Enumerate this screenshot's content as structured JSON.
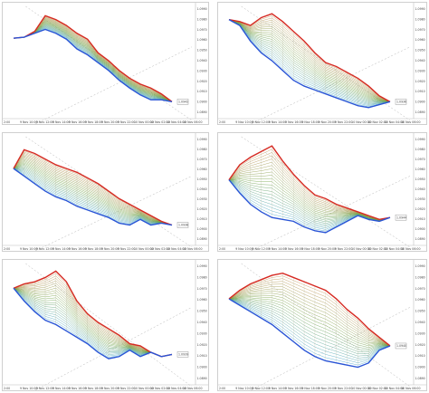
{
  "colors": {
    "top_edge": "#d62a22",
    "bottom_edge": "#2a55d6",
    "mesh_low": "#3aa3d6",
    "mesh_mid": "#6a9e3c",
    "mesh_high": "#c78a4a",
    "price_tag": "#9a9a9a",
    "trend_line": "#b5b5b5"
  },
  "panels": [
    {
      "y_ticks": [
        "1.0990",
        "1.0980",
        "1.0970",
        "1.0960",
        "1.0950",
        "1.0940",
        "1.0930",
        "1.0920",
        "1.0910",
        "1.0900",
        "1.0890"
      ],
      "x_ticks": [
        "2:00",
        "9 Nov 10:00",
        "9 Nov 12:00",
        "9 Nov 14:00",
        "9 Nov 16:00",
        "9 Nov 18:00",
        "9 Nov 20:00",
        "9 Nov 22:00",
        "10 Nov 00:00",
        "10 Nov 02:00",
        "10 Nov 04:00",
        "10 Nov 06:00"
      ],
      "price_tag": "1.0942"
    },
    {
      "y_ticks": [
        "1.0990",
        "1.0980",
        "1.0970",
        "1.0960",
        "1.0950",
        "1.0940",
        "1.0930",
        "1.0920",
        "1.0910",
        "1.0900",
        "1.0890"
      ],
      "x_ticks": [
        "2:00",
        "9 Nov 10:00",
        "9 Nov 12:00",
        "9 Nov 14:00",
        "9 Nov 16:00",
        "9 Nov 18:00",
        "9 Nov 20:00",
        "9 Nov 22:00",
        "10 Nov 00:00",
        "10 Nov 02:00",
        "10 Nov 04:00",
        "10 Nov 06:00"
      ],
      "price_tag": "1.0936"
    },
    {
      "y_ticks": [
        "1.0990",
        "1.0980",
        "1.0970",
        "1.0960",
        "1.0950",
        "1.0940",
        "1.0930",
        "1.0920",
        "1.0910",
        "1.0900",
        "1.0890"
      ],
      "x_ticks": [
        "2:00",
        "9 Nov 10:00",
        "9 Nov 12:00",
        "9 Nov 14:00",
        "9 Nov 16:00",
        "9 Nov 18:00",
        "9 Nov 20:00",
        "9 Nov 22:00",
        "10 Nov 00:00",
        "10 Nov 02:00",
        "10 Nov 04:00",
        "10 Nov 06:00"
      ],
      "price_tag": "1.0938"
    },
    {
      "y_ticks": [
        "1.0990",
        "1.0980",
        "1.0970",
        "1.0960",
        "1.0950",
        "1.0940",
        "1.0930",
        "1.0920",
        "1.0910",
        "1.0900",
        "1.0890"
      ],
      "x_ticks": [
        "2:00",
        "9 Nov 10:00",
        "9 Nov 12:00",
        "9 Nov 14:00",
        "9 Nov 16:00",
        "9 Nov 18:00",
        "9 Nov 20:00",
        "9 Nov 22:00",
        "10 Nov 00:00",
        "10 Nov 02:00",
        "10 Nov 04:00",
        "10 Nov 06:00"
      ],
      "price_tag": "1.0944"
    },
    {
      "y_ticks": [
        "1.0990",
        "1.0980",
        "1.0970",
        "1.0960",
        "1.0950",
        "1.0940",
        "1.0930",
        "1.0920",
        "1.0910",
        "1.0900",
        "1.0890"
      ],
      "x_ticks": [
        "2:00",
        "9 Nov 10:00",
        "9 Nov 12:00",
        "9 Nov 14:00",
        "9 Nov 16:00",
        "9 Nov 18:00",
        "9 Nov 20:00",
        "9 Nov 22:00",
        "10 Nov 00:00",
        "10 Nov 02:00",
        "10 Nov 04:00",
        "10 Nov 06:00"
      ],
      "price_tag": "1.0939"
    },
    {
      "y_ticks": [
        "1.0990",
        "1.0980",
        "1.0970",
        "1.0960",
        "1.0950",
        "1.0940",
        "1.0930",
        "1.0920",
        "1.0910",
        "1.0900",
        "1.0890"
      ],
      "x_ticks": [
        "2:00",
        "9 Nov 10:00",
        "9 Nov 12:00",
        "9 Nov 14:00",
        "9 Nov 16:00",
        "9 Nov 18:00",
        "9 Nov 20:00",
        "9 Nov 22:00",
        "10 Nov 00:00",
        "10 Nov 02:00",
        "10 Nov 04:00",
        "10 Nov 06:00"
      ],
      "price_tag": "1.0940"
    }
  ],
  "chart_data": [
    {
      "type": "line",
      "top_curve": [
        0.73,
        0.74,
        0.8,
        0.96,
        0.92,
        0.86,
        0.78,
        0.72,
        0.58,
        0.5,
        0.4,
        0.32,
        0.26,
        0.22,
        0.16,
        0.08
      ],
      "bottom_curve": [
        0.73,
        0.74,
        0.78,
        0.82,
        0.78,
        0.72,
        0.62,
        0.56,
        0.48,
        0.4,
        0.3,
        0.22,
        0.15,
        0.1,
        0.1,
        0.08
      ]
    },
    {
      "type": "line",
      "top_curve": [
        0.92,
        0.9,
        0.86,
        0.94,
        0.98,
        0.9,
        0.8,
        0.7,
        0.58,
        0.48,
        0.44,
        0.38,
        0.32,
        0.24,
        0.14,
        0.08
      ],
      "bottom_curve": [
        0.92,
        0.86,
        0.7,
        0.58,
        0.5,
        0.4,
        0.3,
        0.24,
        0.2,
        0.16,
        0.12,
        0.08,
        0.04,
        0.02,
        0.05,
        0.08
      ]
    },
    {
      "type": "line",
      "top_curve": [
        0.72,
        0.92,
        0.88,
        0.82,
        0.76,
        0.72,
        0.68,
        0.62,
        0.56,
        0.48,
        0.4,
        0.34,
        0.28,
        0.22,
        0.16,
        0.12
      ],
      "bottom_curve": [
        0.72,
        0.64,
        0.56,
        0.48,
        0.42,
        0.38,
        0.32,
        0.28,
        0.24,
        0.2,
        0.14,
        0.12,
        0.18,
        0.12,
        0.14,
        0.12
      ]
    },
    {
      "type": "line",
      "top_curve": [
        0.6,
        0.76,
        0.84,
        0.9,
        0.96,
        0.8,
        0.66,
        0.54,
        0.44,
        0.4,
        0.34,
        0.3,
        0.26,
        0.22,
        0.18,
        0.2
      ],
      "bottom_curve": [
        0.6,
        0.46,
        0.34,
        0.26,
        0.2,
        0.18,
        0.16,
        0.1,
        0.06,
        0.04,
        0.1,
        0.16,
        0.22,
        0.18,
        0.16,
        0.2
      ]
    },
    {
      "type": "line",
      "top_curve": [
        0.82,
        0.86,
        0.88,
        0.92,
        0.98,
        0.88,
        0.7,
        0.58,
        0.5,
        0.44,
        0.38,
        0.3,
        0.28,
        0.22,
        0.18,
        0.2
      ],
      "bottom_curve": [
        0.82,
        0.7,
        0.6,
        0.52,
        0.48,
        0.42,
        0.36,
        0.3,
        0.22,
        0.16,
        0.18,
        0.24,
        0.18,
        0.22,
        0.18,
        0.2
      ]
    },
    {
      "type": "line",
      "top_curve": [
        0.72,
        0.8,
        0.86,
        0.9,
        0.94,
        0.96,
        0.92,
        0.88,
        0.84,
        0.8,
        0.72,
        0.62,
        0.54,
        0.44,
        0.36,
        0.28
      ],
      "bottom_curve": [
        0.72,
        0.66,
        0.6,
        0.54,
        0.48,
        0.4,
        0.32,
        0.24,
        0.18,
        0.14,
        0.12,
        0.1,
        0.08,
        0.12,
        0.24,
        0.28
      ]
    }
  ]
}
